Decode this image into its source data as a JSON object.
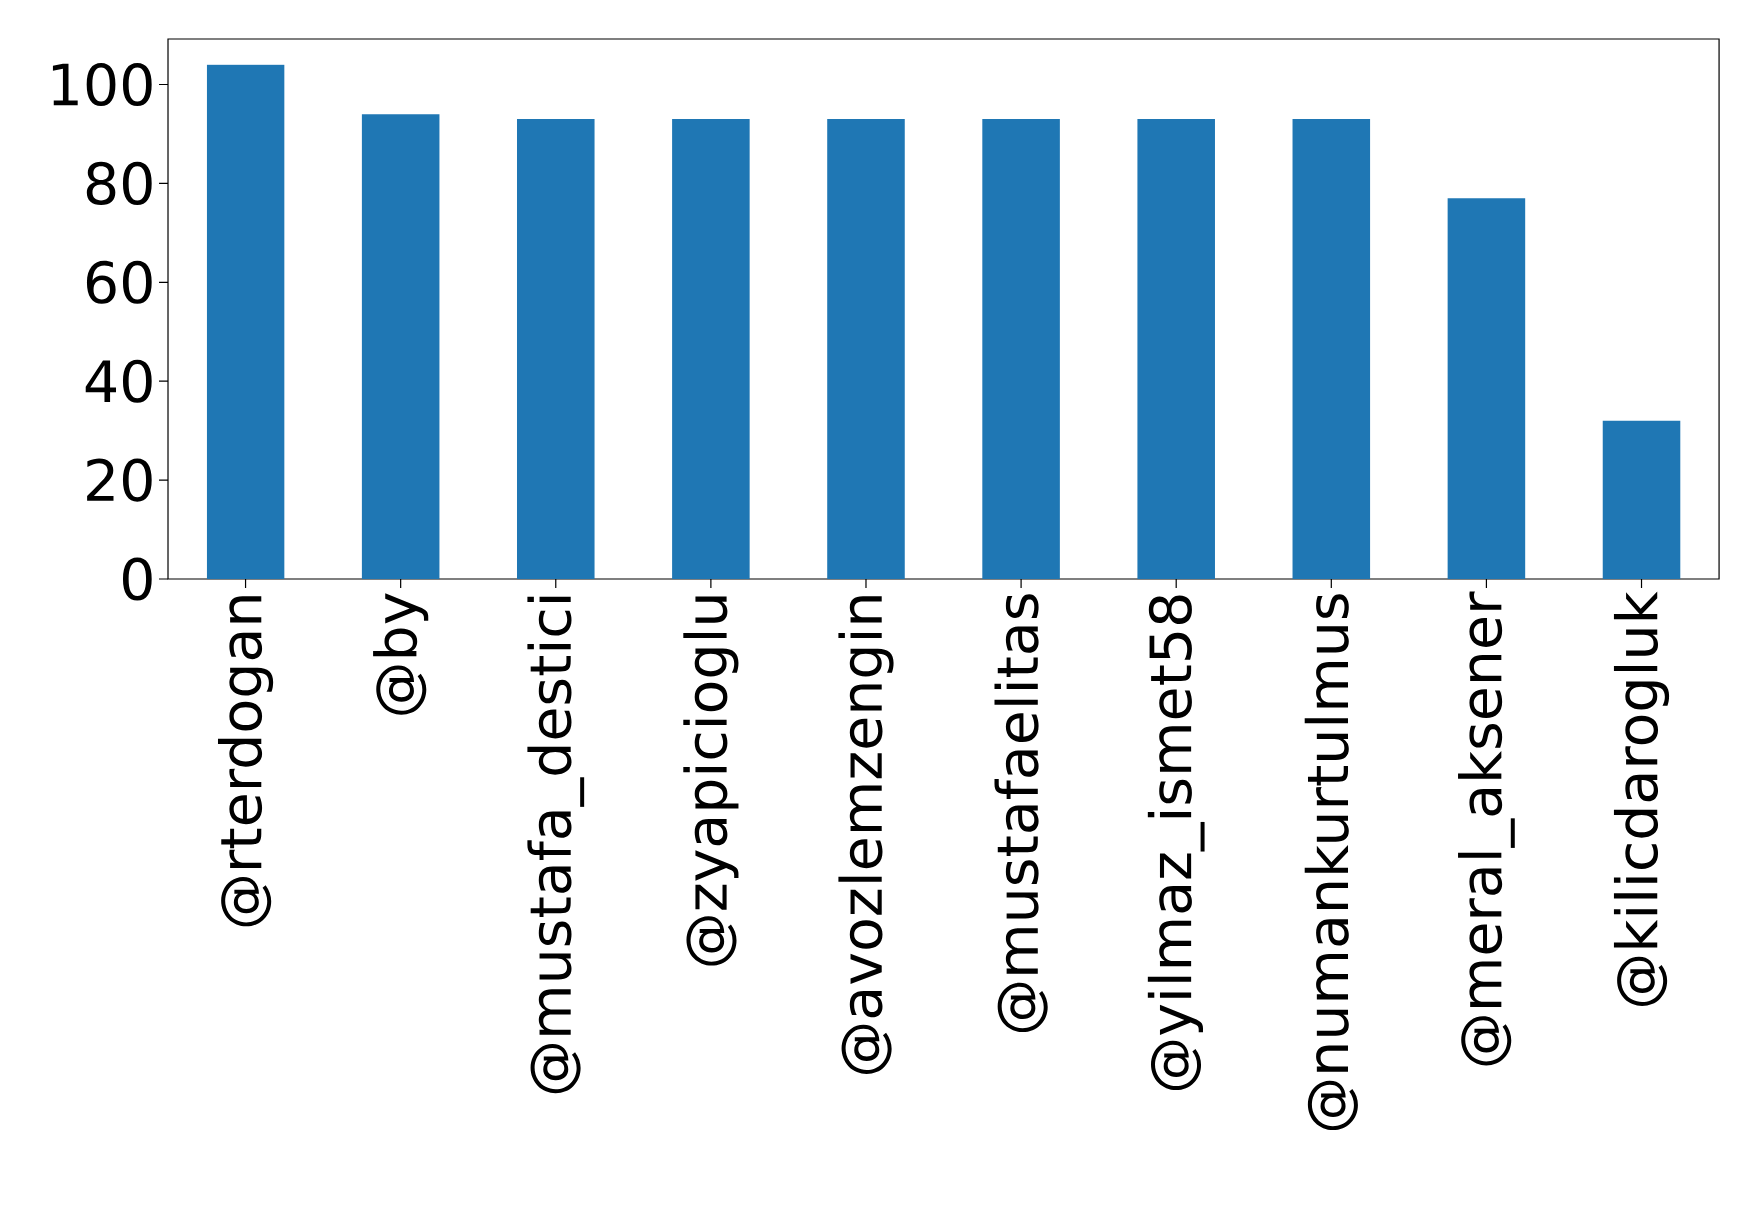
{
  "chart_data": {
    "type": "bar",
    "categories": [
      "@rterdogan",
      "@by",
      "@mustafa_destici",
      "@zyapicioglu",
      "@avozlemzengin",
      "@mustafaelitas",
      "@yilmaz_ismet58",
      "@numankurtulmus",
      "@meral_aksener",
      "@kilicdarogluk"
    ],
    "values": [
      104,
      94,
      93,
      93,
      93,
      93,
      93,
      93,
      77,
      32
    ],
    "color": "#1f77b4",
    "ylim": [
      0,
      109.2
    ],
    "yticks": [
      0,
      20,
      40,
      60,
      80,
      100
    ]
  }
}
